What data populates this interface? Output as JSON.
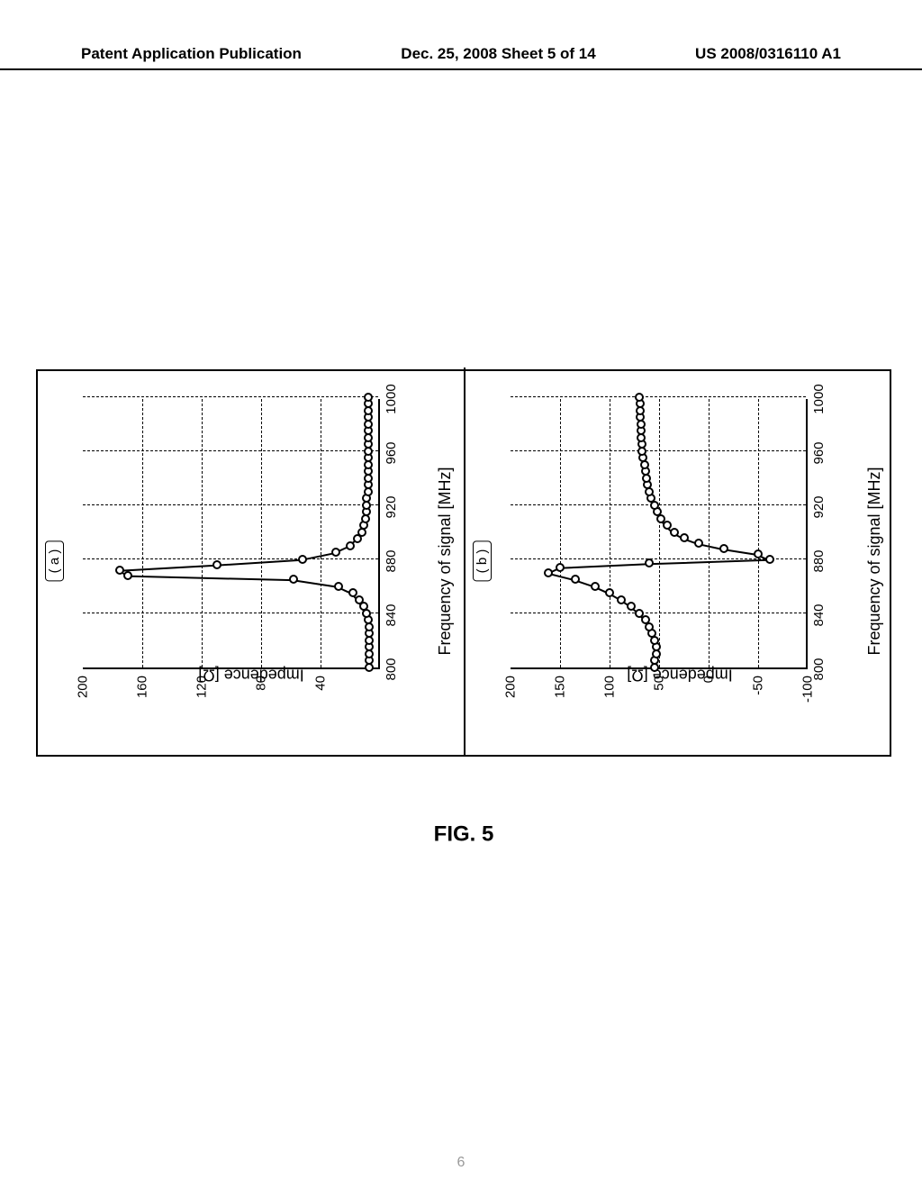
{
  "header": {
    "left": "Patent Application Publication",
    "center": "Dec. 25, 2008  Sheet 5 of 14",
    "right": "US 2008/0316110 A1"
  },
  "figure_title": "FIG. 5",
  "page_number": "6",
  "x_axis_label": "Frequency of signal [MHz]",
  "y_axis_label": "Impedence [Ω]",
  "x_ticks": [
    800,
    840,
    880,
    920,
    960,
    1000
  ],
  "panel_a": {
    "tag": "( a )",
    "xlim": [
      800,
      1000
    ],
    "ylim": [
      0,
      200
    ],
    "y_ticks": [
      40,
      80,
      120,
      160,
      200
    ],
    "grid_x": [
      840,
      880,
      920,
      960,
      1000
    ],
    "grid_y": [
      40,
      80,
      120,
      160
    ],
    "series": [
      [
        800,
        7
      ],
      [
        805,
        7
      ],
      [
        810,
        7
      ],
      [
        815,
        7
      ],
      [
        820,
        7
      ],
      [
        825,
        7
      ],
      [
        830,
        7
      ],
      [
        835,
        8
      ],
      [
        840,
        9
      ],
      [
        845,
        11
      ],
      [
        850,
        14
      ],
      [
        855,
        18
      ],
      [
        860,
        28
      ],
      [
        865,
        58
      ],
      [
        868,
        170
      ],
      [
        872,
        175
      ],
      [
        876,
        110
      ],
      [
        880,
        52
      ],
      [
        885,
        30
      ],
      [
        890,
        20
      ],
      [
        895,
        15
      ],
      [
        900,
        12
      ],
      [
        905,
        11
      ],
      [
        910,
        10
      ],
      [
        915,
        9
      ],
      [
        920,
        9
      ],
      [
        925,
        9
      ],
      [
        930,
        8
      ],
      [
        935,
        8
      ],
      [
        940,
        8
      ],
      [
        945,
        8
      ],
      [
        950,
        8
      ],
      [
        955,
        8
      ],
      [
        960,
        8
      ],
      [
        965,
        8
      ],
      [
        970,
        8
      ],
      [
        975,
        8
      ],
      [
        980,
        8
      ],
      [
        985,
        8
      ],
      [
        990,
        8
      ],
      [
        995,
        8
      ],
      [
        1000,
        8
      ]
    ]
  },
  "panel_b": {
    "tag": "( b )",
    "xlim": [
      800,
      1000
    ],
    "ylim": [
      -100,
      200
    ],
    "y_ticks": [
      -100,
      -50,
      0,
      50,
      100,
      150,
      200
    ],
    "grid_x": [
      840,
      880,
      920,
      960,
      1000
    ],
    "grid_y": [
      -50,
      0,
      50,
      100,
      150
    ],
    "series": [
      [
        800,
        55
      ],
      [
        805,
        55
      ],
      [
        810,
        53
      ],
      [
        815,
        53
      ],
      [
        820,
        55
      ],
      [
        825,
        57
      ],
      [
        830,
        60
      ],
      [
        835,
        64
      ],
      [
        840,
        70
      ],
      [
        845,
        78
      ],
      [
        850,
        88
      ],
      [
        855,
        100
      ],
      [
        860,
        115
      ],
      [
        865,
        135
      ],
      [
        870,
        162
      ],
      [
        874,
        150
      ],
      [
        877,
        60
      ],
      [
        880,
        -62
      ],
      [
        884,
        -50
      ],
      [
        888,
        -15
      ],
      [
        892,
        10
      ],
      [
        896,
        25
      ],
      [
        900,
        35
      ],
      [
        905,
        42
      ],
      [
        910,
        48
      ],
      [
        915,
        52
      ],
      [
        920,
        55
      ],
      [
        925,
        58
      ],
      [
        930,
        60
      ],
      [
        935,
        62
      ],
      [
        940,
        63
      ],
      [
        945,
        64
      ],
      [
        950,
        65
      ],
      [
        955,
        66
      ],
      [
        960,
        67
      ],
      [
        965,
        67
      ],
      [
        970,
        68
      ],
      [
        975,
        68
      ],
      [
        980,
        68
      ],
      [
        985,
        69
      ],
      [
        990,
        69
      ],
      [
        995,
        69
      ],
      [
        1000,
        70
      ]
    ]
  },
  "style": {
    "marker_color": "#ffffff",
    "marker_border": "#000000",
    "line_color": "#000000",
    "background": "#ffffff",
    "grid_dash": "4,3"
  }
}
